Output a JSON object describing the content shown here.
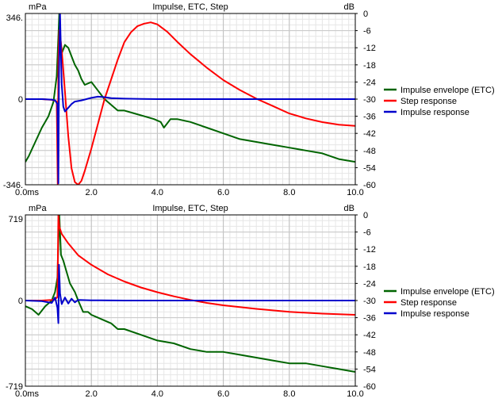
{
  "chart_data": [
    {
      "type": "line",
      "title": "Impulse, ETC, Step",
      "xlabel": "ms",
      "ylabel_left": "mPa",
      "ylabel_right": "dB",
      "xlim": [
        0,
        10
      ],
      "ylim_left": [
        -346,
        346
      ],
      "ylim_right": [
        -60,
        0
      ],
      "x_ticks": [
        "0.0ms",
        "2.0",
        "4.0",
        "6.0",
        "8.0",
        "10.0"
      ],
      "y_ticks_left": [
        "346.",
        "0",
        "-346."
      ],
      "y_ticks_right": [
        "0",
        "-6",
        "-12",
        "-18",
        "-24",
        "-30",
        "-36",
        "-42",
        "-48",
        "-54",
        "-60"
      ],
      "grid": true,
      "legend_position": "right",
      "series": [
        {
          "name": "Impulse envelope (ETC)",
          "color": "#006400",
          "axis": "right",
          "x": [
            0.0,
            0.1,
            0.3,
            0.5,
            0.7,
            0.85,
            0.95,
            1.0,
            1.03,
            1.06,
            1.1,
            1.2,
            1.3,
            1.4,
            1.5,
            1.6,
            1.7,
            1.8,
            2.0,
            2.2,
            2.4,
            2.6,
            2.8,
            3.0,
            3.3,
            3.6,
            3.9,
            4.1,
            4.2,
            4.4,
            4.6,
            5.0,
            5.5,
            6.0,
            6.5,
            7.0,
            7.5,
            8.0,
            8.5,
            9.0,
            9.5,
            10.0
          ],
          "y": [
            -52,
            -50,
            -45,
            -40,
            -36,
            -31,
            -22,
            -8,
            0,
            -10,
            -14,
            -11,
            -12,
            -15,
            -18,
            -20,
            -23,
            -25,
            -24,
            -27,
            -30,
            -32,
            -34,
            -34,
            -35,
            -36,
            -37,
            -38,
            -40,
            -37,
            -37,
            -38,
            -40,
            -42,
            -44,
            -45,
            -46,
            -47,
            -48,
            -49,
            -51,
            -52
          ]
        },
        {
          "name": "Step response",
          "color": "#ff0000",
          "axis": "left",
          "x": [
            0.0,
            0.5,
            0.8,
            0.9,
            0.95,
            0.98,
            1.0,
            1.03,
            1.06,
            1.1,
            1.2,
            1.3,
            1.4,
            1.5,
            1.6,
            1.7,
            1.8,
            2.0,
            2.2,
            2.4,
            2.6,
            2.8,
            3.0,
            3.2,
            3.4,
            3.6,
            3.8,
            4.0,
            4.3,
            4.6,
            5.0,
            5.5,
            6.0,
            6.5,
            7.0,
            7.5,
            8.0,
            8.5,
            9.0,
            9.5,
            10.0
          ],
          "y": [
            0,
            0,
            -3,
            -6,
            -10,
            -346,
            150,
            280,
            250,
            200,
            30,
            -150,
            -280,
            -335,
            -346,
            -330,
            -290,
            -200,
            -100,
            0,
            80,
            160,
            230,
            270,
            295,
            305,
            310,
            302,
            272,
            232,
            182,
            127,
            77,
            37,
            2,
            -28,
            -58,
            -78,
            -93,
            -103,
            -108
          ]
        },
        {
          "name": "Impulse response",
          "color": "#0000cc",
          "axis": "left",
          "x": [
            0.0,
            0.5,
            0.8,
            0.9,
            0.97,
            1.0,
            1.02,
            1.05,
            1.1,
            1.15,
            1.2,
            1.3,
            1.4,
            1.5,
            1.7,
            2.0,
            2.2,
            2.4,
            2.6,
            3.0,
            3.5,
            4.0,
            5.0,
            6.0,
            7.0,
            8.0,
            9.0,
            10.0
          ],
          "y": [
            0,
            0,
            -2,
            -5,
            -20,
            -340,
            100,
            346,
            60,
            -30,
            -50,
            -35,
            -20,
            -10,
            -5,
            5,
            10,
            8,
            4,
            2,
            1,
            0,
            0,
            0,
            0,
            0,
            0,
            0
          ]
        }
      ]
    },
    {
      "type": "line",
      "title": "Impulse, ETC, Step",
      "xlabel": "ms",
      "ylabel_left": "mPa",
      "ylabel_right": "dB",
      "xlim": [
        0,
        10
      ],
      "ylim_left": [
        -719,
        719
      ],
      "ylim_right": [
        -60,
        0
      ],
      "x_ticks": [
        "0.0ms",
        "2.0",
        "4.0",
        "6.0",
        "8.0",
        "10.0"
      ],
      "y_ticks_left": [
        "719",
        "0",
        "-719"
      ],
      "y_ticks_right": [
        "0",
        "-6",
        "-12",
        "-18",
        "-24",
        "-30",
        "-36",
        "-42",
        "-48",
        "-54",
        "-60"
      ],
      "grid": true,
      "legend_position": "right",
      "series": [
        {
          "name": "Impulse envelope (ETC)",
          "color": "#006400",
          "axis": "right",
          "x": [
            0.0,
            0.2,
            0.4,
            0.6,
            0.8,
            0.9,
            0.97,
            1.0,
            1.03,
            1.08,
            1.15,
            1.25,
            1.35,
            1.5,
            1.6,
            1.75,
            1.9,
            2.0,
            2.2,
            2.4,
            2.6,
            2.8,
            3.0,
            3.5,
            4.0,
            4.5,
            5.0,
            5.5,
            6.0,
            6.5,
            7.0,
            7.5,
            8.0,
            8.5,
            9.0,
            9.5,
            10.0
          ],
          "y": [
            -32,
            -33,
            -35,
            -32,
            -30,
            -27,
            -22,
            -10,
            0,
            -14,
            -16,
            -20,
            -24,
            -27,
            -30,
            -34,
            -34,
            -35,
            -36,
            -37,
            -38,
            -40,
            -40,
            -42,
            -44,
            -45,
            -47,
            -48,
            -48,
            -49,
            -50,
            -51,
            -52,
            -52,
            -53,
            -54,
            -55
          ]
        },
        {
          "name": "Step response",
          "color": "#ff0000",
          "axis": "left",
          "x": [
            0.0,
            0.5,
            0.8,
            0.9,
            0.97,
            1.0,
            1.03,
            1.1,
            1.3,
            1.6,
            2.0,
            2.5,
            3.0,
            3.5,
            4.0,
            4.5,
            5.0,
            5.5,
            6.0,
            7.0,
            8.0,
            9.0,
            10.0
          ],
          "y": [
            0,
            0,
            5,
            10,
            30,
            719,
            620,
            560,
            480,
            380,
            300,
            220,
            160,
            110,
            70,
            35,
            5,
            -20,
            -40,
            -70,
            -95,
            -110,
            -120
          ]
        },
        {
          "name": "Impulse response",
          "color": "#0000cc",
          "axis": "left",
          "x": [
            0.0,
            0.5,
            0.8,
            0.9,
            0.97,
            1.0,
            1.02,
            1.05,
            1.1,
            1.2,
            1.3,
            1.4,
            1.5,
            1.6,
            2.0,
            3.0,
            4.0,
            5.0,
            6.0,
            7.0,
            8.0,
            9.0,
            10.0
          ],
          "y": [
            0,
            -5,
            -20,
            25,
            -60,
            -190,
            300,
            60,
            -30,
            25,
            -25,
            15,
            -15,
            5,
            2,
            0,
            0,
            0,
            0,
            0,
            0,
            0,
            0
          ]
        }
      ]
    }
  ]
}
